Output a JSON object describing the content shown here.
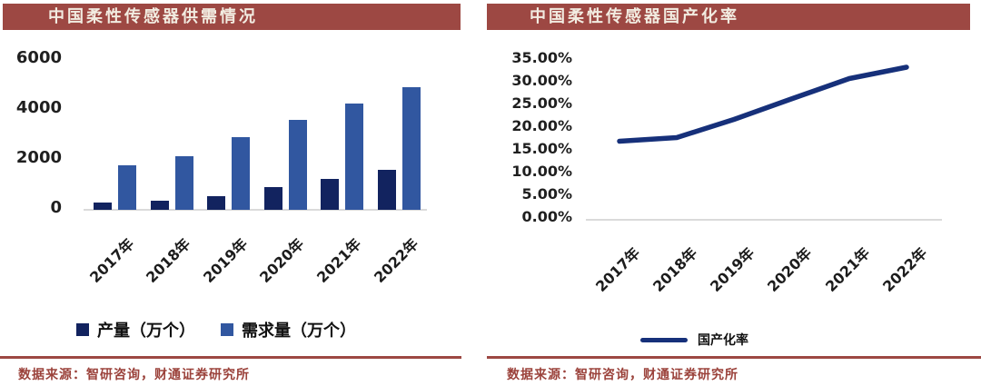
{
  "colors": {
    "header_bg": "#9d4843",
    "header_text": "#f2ece1",
    "source_text": "#9b423b",
    "divider": "#9d4843",
    "production_bar": "#12235f",
    "demand_bar": "#3157a0",
    "rate_line": "#16307a",
    "axis_text": "#1f1f1f",
    "baseline": "#dadada"
  },
  "chart_data": [
    {
      "id": "supply-demand",
      "type": "bar",
      "title": "中国柔性传感器供需情况",
      "categories": [
        "2017年",
        "2018年",
        "2019年",
        "2020年",
        "2021年",
        "2022年"
      ],
      "series": [
        {
          "name": "产量（万个）",
          "color": "#12235f",
          "values": [
            300,
            350,
            550,
            900,
            1250,
            1600
          ]
        },
        {
          "name": "需求量（万个）",
          "color": "#3157a0",
          "values": [
            1800,
            2150,
            2900,
            3600,
            4250,
            4900
          ]
        }
      ],
      "xlabel": "",
      "ylabel": "",
      "ylim": [
        0,
        6000
      ],
      "yticks": [
        0,
        2000,
        4000,
        6000
      ],
      "grid": false,
      "legend_position": "bottom",
      "source": "数据来源：智研咨询，财通证券研究所"
    },
    {
      "id": "localization-rate",
      "type": "line",
      "title": "中国柔性传感器国产化率",
      "categories": [
        "2017年",
        "2018年",
        "2019年",
        "2020年",
        "2021年",
        "2022年"
      ],
      "series": [
        {
          "name": "国产化率",
          "color": "#16307a",
          "values": [
            16.7,
            17.5,
            21.5,
            26.0,
            30.5,
            33.0
          ]
        }
      ],
      "unit": "%",
      "xlabel": "",
      "ylabel": "",
      "ylim": [
        0,
        35
      ],
      "yticks": [
        0,
        5,
        10,
        15,
        20,
        25,
        30,
        35
      ],
      "ytick_labels": [
        "0.00%",
        "5.00%",
        "10.00%",
        "15.00%",
        "20.00%",
        "25.00%",
        "30.00%",
        "35.00%"
      ],
      "grid": false,
      "legend_position": "bottom",
      "source": "数据来源：智研咨询，财通证券研究所"
    }
  ]
}
